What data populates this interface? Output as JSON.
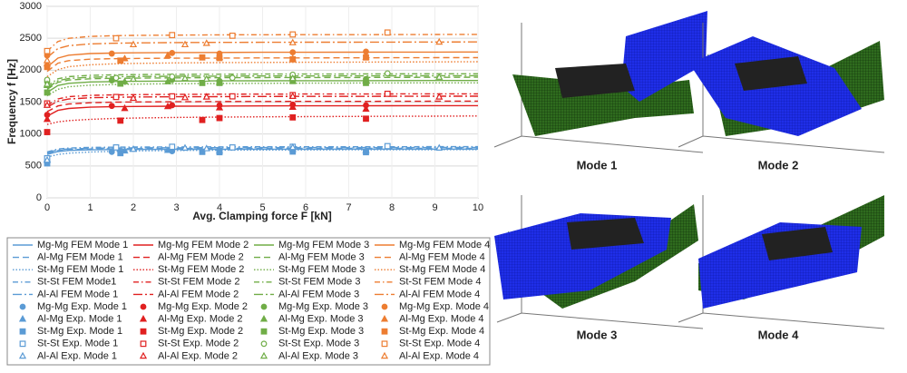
{
  "chart_data": {
    "type": "line",
    "xlabel": "Avg. Clamping force F [kN]",
    "ylabel": "Frequency f [Hz]",
    "xlim": [
      0,
      10
    ],
    "xticks": [
      0,
      1,
      2,
      3,
      4,
      5,
      6,
      7,
      8,
      9,
      10
    ],
    "ylim": [
      0,
      3000
    ],
    "yticks": [
      0,
      500,
      1000,
      1500,
      2000,
      2500,
      3000
    ],
    "grid": true,
    "x": [
      0,
      0.25,
      0.5,
      1,
      1.5,
      2,
      3,
      4,
      5,
      6,
      7,
      8,
      9,
      10
    ],
    "series": [
      {
        "name": "Mg-Mg FEM Mode 1",
        "color": "#5b9bd5",
        "dash": "solid",
        "values": [
          680,
          725,
          742,
          752,
          756,
          758,
          760,
          761,
          762,
          762,
          763,
          763,
          764,
          764
        ]
      },
      {
        "name": "Al-Mg FEM Mode 1",
        "color": "#5b9bd5",
        "dash": "dashed",
        "values": [
          700,
          740,
          755,
          765,
          769,
          771,
          773,
          774,
          775,
          775,
          776,
          776,
          777,
          777
        ]
      },
      {
        "name": "St-Mg FEM Mode 1",
        "color": "#5b9bd5",
        "dash": "dotted",
        "values": [
          640,
          680,
          700,
          718,
          728,
          735,
          742,
          746,
          749,
          751,
          752,
          753,
          754,
          755
        ]
      },
      {
        "name": "St-St FEM Mode1",
        "color": "#5b9bd5",
        "dash": "dashdot",
        "values": [
          720,
          765,
          780,
          790,
          794,
          796,
          798,
          799,
          800,
          800,
          801,
          801,
          802,
          802
        ]
      },
      {
        "name": "Al-Al FEM Mode 1",
        "color": "#5b9bd5",
        "dash": "longdashdot",
        "values": [
          710,
          752,
          767,
          777,
          781,
          783,
          785,
          786,
          787,
          787,
          788,
          788,
          789,
          789
        ]
      },
      {
        "name": "Mg-Mg Exp. Mode 1",
        "color": "#5b9bd5",
        "marker": "circle",
        "filled": true,
        "x": [
          0,
          1.5,
          2.9,
          4.0,
          5.7,
          7.4
        ],
        "values": [
          560,
          720,
          730,
          740,
          745,
          730
        ]
      },
      {
        "name": "Al-Mg Exp. Mode 1",
        "color": "#5b9bd5",
        "marker": "triangle",
        "filled": true,
        "x": [
          0,
          1.8,
          2.8,
          4.0,
          5.7,
          7.4
        ],
        "values": [
          600,
          735,
          745,
          735,
          760,
          740
        ]
      },
      {
        "name": "St-Mg Exp. Mode 1",
        "color": "#5b9bd5",
        "marker": "square",
        "filled": true,
        "x": [
          0,
          1.7,
          3.6,
          4.0,
          5.7,
          7.4
        ],
        "values": [
          540,
          700,
          720,
          715,
          725,
          715
        ]
      },
      {
        "name": "St-St Exp. Mode 1",
        "color": "#5b9bd5",
        "marker": "square",
        "filled": false,
        "x": [
          0,
          1.6,
          2.9,
          4.3,
          5.7,
          7.9
        ],
        "values": [
          620,
          790,
          800,
          790,
          800,
          810
        ]
      },
      {
        "name": "Al-Al Exp. Mode 1",
        "color": "#5b9bd5",
        "marker": "triangle",
        "filled": false,
        "x": [
          0,
          2.0,
          3.2,
          3.7,
          5.7,
          9.1
        ],
        "values": [
          590,
          760,
          780,
          770,
          790,
          780
        ]
      },
      {
        "name": "Mg-Mg FEM Mode 2",
        "color": "#e02020",
        "dash": "solid",
        "values": [
          1280,
          1370,
          1400,
          1420,
          1428,
          1432,
          1436,
          1438,
          1440,
          1441,
          1442,
          1443,
          1444,
          1445
        ]
      },
      {
        "name": "Al-Mg FEM Mode 2",
        "color": "#e02020",
        "dash": "dashed",
        "values": [
          1350,
          1440,
          1470,
          1490,
          1498,
          1502,
          1506,
          1508,
          1510,
          1511,
          1512,
          1513,
          1514,
          1515
        ]
      },
      {
        "name": "St-Mg FEM Mode 2",
        "color": "#e02020",
        "dash": "dotted",
        "values": [
          1150,
          1190,
          1210,
          1230,
          1242,
          1250,
          1260,
          1266,
          1270,
          1273,
          1276,
          1278,
          1280,
          1282
        ]
      },
      {
        "name": "St-St FEM Mode 2",
        "color": "#e02020",
        "dash": "dashdot",
        "values": [
          1450,
          1550,
          1585,
          1605,
          1613,
          1617,
          1621,
          1623,
          1625,
          1626,
          1627,
          1628,
          1629,
          1630
        ]
      },
      {
        "name": "Al-Al FEM Mode 2",
        "color": "#e02020",
        "dash": "longdashdot",
        "values": [
          1420,
          1515,
          1548,
          1568,
          1576,
          1580,
          1584,
          1586,
          1588,
          1589,
          1590,
          1591,
          1592,
          1593
        ]
      },
      {
        "name": "Mg-Mg Exp. Mode 2",
        "color": "#e02020",
        "marker": "circle",
        "filled": true,
        "x": [
          0,
          1.5,
          2.9,
          4.0,
          5.7,
          7.4
        ],
        "values": [
          1300,
          1440,
          1450,
          1450,
          1460,
          1450
        ]
      },
      {
        "name": "Al-Mg Exp. Mode 2",
        "color": "#e02020",
        "marker": "triangle",
        "filled": true,
        "x": [
          0,
          1.8,
          2.8,
          4.0,
          5.7,
          7.4
        ],
        "values": [
          1230,
          1400,
          1430,
          1410,
          1420,
          1390
        ]
      },
      {
        "name": "St-Mg Exp. Mode 2",
        "color": "#e02020",
        "marker": "square",
        "filled": true,
        "x": [
          0,
          1.7,
          3.6,
          4.0,
          5.7,
          7.4
        ],
        "values": [
          1030,
          1210,
          1220,
          1250,
          1260,
          1240
        ]
      },
      {
        "name": "St-St Exp. Mode 2",
        "color": "#e02020",
        "marker": "square",
        "filled": false,
        "x": [
          0,
          1.6,
          2.9,
          4.3,
          5.7,
          7.9
        ],
        "values": [
          1480,
          1580,
          1590,
          1590,
          1610,
          1630
        ]
      },
      {
        "name": "Al-Al Exp. Mode 2",
        "color": "#e02020",
        "marker": "triangle",
        "filled": false,
        "x": [
          0,
          2.0,
          3.2,
          3.7,
          5.7,
          9.1
        ],
        "values": [
          1450,
          1560,
          1570,
          1580,
          1590,
          1580
        ]
      },
      {
        "name": "Mg-Mg FEM Mode 3",
        "color": "#70ad47",
        "dash": "solid",
        "values": [
          1650,
          1760,
          1795,
          1815,
          1822,
          1826,
          1830,
          1832,
          1834,
          1835,
          1836,
          1837,
          1838,
          1839
        ]
      },
      {
        "name": "Al-Mg FEM Mode 3",
        "color": "#70ad47",
        "dash": "dashed",
        "values": [
          1700,
          1810,
          1845,
          1865,
          1872,
          1876,
          1880,
          1882,
          1884,
          1885,
          1886,
          1887,
          1888,
          1889
        ]
      },
      {
        "name": "St-Mg FEM Mode 3",
        "color": "#70ad47",
        "dash": "dotted",
        "values": [
          1600,
          1700,
          1740,
          1765,
          1775,
          1782,
          1788,
          1792,
          1795,
          1797,
          1799,
          1800,
          1801,
          1802
        ]
      },
      {
        "name": "St-St FEM Mode 3",
        "color": "#70ad47",
        "dash": "dashdot",
        "values": [
          1750,
          1865,
          1900,
          1920,
          1927,
          1931,
          1935,
          1937,
          1939,
          1940,
          1941,
          1942,
          1943,
          1944
        ]
      },
      {
        "name": "Al-Al FEM Mode 3",
        "color": "#70ad47",
        "dash": "longdashdot",
        "values": [
          1720,
          1835,
          1870,
          1890,
          1897,
          1901,
          1905,
          1907,
          1909,
          1910,
          1911,
          1912,
          1913,
          1914
        ]
      },
      {
        "name": "Mg-Mg Exp. Mode 3",
        "color": "#70ad47",
        "marker": "circle",
        "filled": true,
        "x": [
          0,
          1.5,
          2.9,
          4.0,
          5.7,
          7.4
        ],
        "values": [
          1820,
          1840,
          1850,
          1830,
          1900,
          1860
        ]
      },
      {
        "name": "Al-Mg Exp. Mode 3",
        "color": "#70ad47",
        "marker": "triangle",
        "filled": true,
        "x": [
          0,
          1.8,
          2.8,
          4.0,
          5.7,
          7.4
        ],
        "values": [
          1760,
          1820,
          1820,
          1810,
          1880,
          1840
        ]
      },
      {
        "name": "St-Mg Exp. Mode 3",
        "color": "#70ad47",
        "marker": "square",
        "filled": true,
        "x": [
          0,
          1.7,
          3.6,
          4.0,
          5.7,
          7.4
        ],
        "values": [
          1650,
          1790,
          1800,
          1800,
          1830,
          1800
        ]
      },
      {
        "name": "St-St Exp. Mode 3",
        "color": "#70ad47",
        "marker": "circle",
        "filled": false,
        "x": [
          0,
          1.6,
          2.9,
          4.3,
          5.7,
          7.9
        ],
        "values": [
          1850,
          1880,
          1900,
          1880,
          1930,
          1950
        ]
      },
      {
        "name": "Al-Al Exp. Mode 3",
        "color": "#70ad47",
        "marker": "triangle",
        "filled": false,
        "x": [
          0,
          2.0,
          3.2,
          3.7,
          5.7,
          9.1
        ],
        "values": [
          1780,
          1860,
          1870,
          1860,
          1870,
          1890
        ]
      },
      {
        "name": "Mg-Mg FEM Mode 4",
        "color": "#ed7d31",
        "dash": "solid",
        "values": [
          2050,
          2190,
          2235,
          2260,
          2268,
          2272,
          2276,
          2278,
          2280,
          2281,
          2282,
          2283,
          2284,
          2285
        ]
      },
      {
        "name": "Al-Mg FEM Mode 4",
        "color": "#ed7d31",
        "dash": "dashed",
        "values": [
          1980,
          2110,
          2150,
          2172,
          2180,
          2184,
          2188,
          2190,
          2192,
          2193,
          2194,
          2195,
          2196,
          2197
        ]
      },
      {
        "name": "St-Mg FEM Mode 4",
        "color": "#ed7d31",
        "dash": "dotted",
        "values": [
          1900,
          2010,
          2055,
          2085,
          2098,
          2106,
          2114,
          2118,
          2122,
          2124,
          2126,
          2128,
          2130,
          2132
        ]
      },
      {
        "name": "St-St FEM Mode 4",
        "color": "#ed7d31",
        "dash": "dashdot",
        "values": [
          2300,
          2450,
          2500,
          2530,
          2540,
          2545,
          2550,
          2553,
          2555,
          2556,
          2557,
          2558,
          2559,
          2560
        ]
      },
      {
        "name": "Al-Al FEM Mode 4",
        "color": "#ed7d31",
        "dash": "longdashdot",
        "values": [
          2200,
          2340,
          2385,
          2412,
          2422,
          2427,
          2432,
          2435,
          2437,
          2438,
          2439,
          2440,
          2441,
          2442
        ]
      },
      {
        "name": "Mg-Mg Exp. Mode 4",
        "color": "#ed7d31",
        "marker": "circle",
        "filled": true,
        "x": [
          0,
          1.5,
          2.9,
          4.0,
          5.7,
          7.4
        ],
        "values": [
          2230,
          2260,
          2270,
          2260,
          2280,
          2290
        ]
      },
      {
        "name": "Al-Mg Exp. Mode 4",
        "color": "#ed7d31",
        "marker": "triangle",
        "filled": true,
        "x": [
          0,
          1.8,
          2.8,
          4.0,
          5.7,
          7.4
        ],
        "values": [
          2100,
          2180,
          2230,
          2200,
          2180,
          2200
        ]
      },
      {
        "name": "St-Mg Exp. Mode 4",
        "color": "#ed7d31",
        "marker": "square",
        "filled": true,
        "x": [
          0,
          1.7,
          3.6,
          4.0,
          5.7,
          7.4
        ],
        "values": [
          2050,
          2150,
          2200,
          2190,
          2170,
          2200
        ]
      },
      {
        "name": "St-St Exp. Mode 4",
        "color": "#ed7d31",
        "marker": "square",
        "filled": false,
        "x": [
          0,
          1.6,
          2.9,
          4.3,
          5.7,
          7.9
        ],
        "values": [
          2300,
          2500,
          2550,
          2540,
          2560,
          2590
        ]
      },
      {
        "name": "Al-Al Exp. Mode 4",
        "color": "#ed7d31",
        "marker": "triangle",
        "filled": false,
        "x": [
          0,
          2.0,
          3.2,
          3.7,
          5.7,
          9.1
        ],
        "values": [
          2150,
          2400,
          2400,
          2420,
          2430,
          2440
        ]
      }
    ]
  },
  "panels": [
    "Mode 1",
    "Mode 2",
    "Mode 3",
    "Mode 4"
  ]
}
